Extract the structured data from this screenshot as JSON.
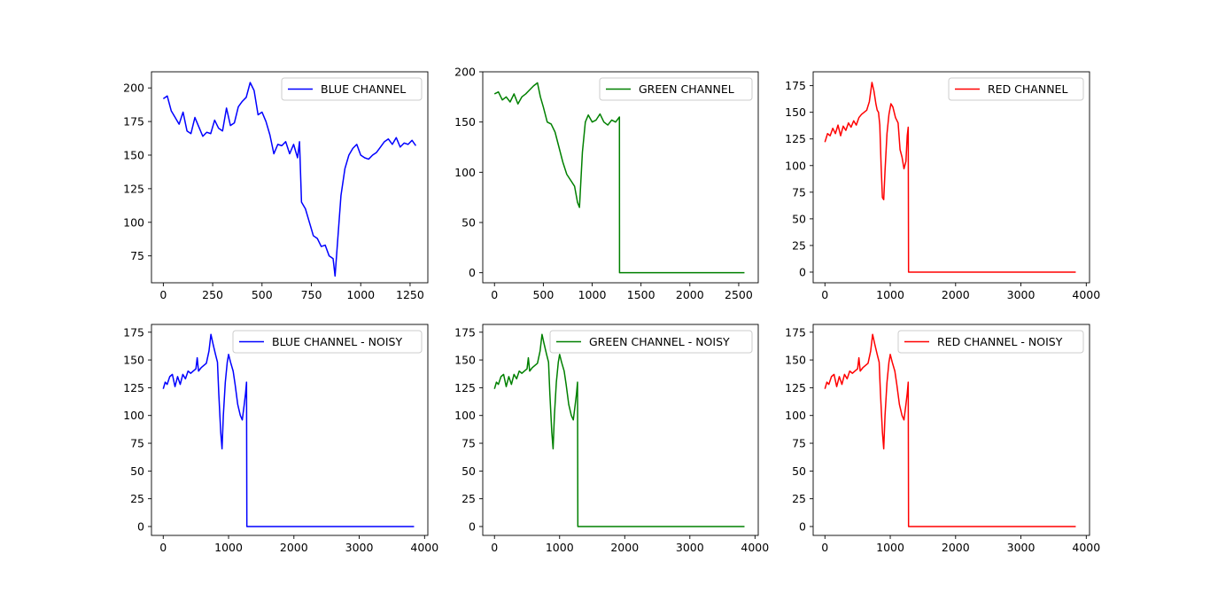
{
  "chart_data": [
    {
      "type": "line",
      "legend": "BLUE CHANNEL",
      "legend_position": "upper right",
      "color": "#0000ff",
      "xlim": [
        -60,
        1340
      ],
      "ylim": [
        55,
        212
      ],
      "xticks": [
        0,
        250,
        500,
        750,
        1000,
        1250
      ],
      "yticks": [
        75,
        100,
        125,
        150,
        175,
        200
      ],
      "points": [
        [
          0,
          192
        ],
        [
          20,
          194
        ],
        [
          40,
          183
        ],
        [
          60,
          178
        ],
        [
          80,
          173
        ],
        [
          100,
          182
        ],
        [
          120,
          168
        ],
        [
          140,
          166
        ],
        [
          160,
          178
        ],
        [
          180,
          171
        ],
        [
          200,
          164
        ],
        [
          220,
          167
        ],
        [
          240,
          166
        ],
        [
          260,
          176
        ],
        [
          280,
          170
        ],
        [
          300,
          168
        ],
        [
          320,
          185
        ],
        [
          340,
          172
        ],
        [
          360,
          174
        ],
        [
          380,
          186
        ],
        [
          400,
          190
        ],
        [
          420,
          193
        ],
        [
          440,
          204
        ],
        [
          460,
          198
        ],
        [
          480,
          180
        ],
        [
          500,
          182
        ],
        [
          520,
          175
        ],
        [
          540,
          165
        ],
        [
          560,
          151
        ],
        [
          580,
          158
        ],
        [
          600,
          157
        ],
        [
          620,
          160
        ],
        [
          640,
          151
        ],
        [
          660,
          158
        ],
        [
          680,
          148
        ],
        [
          690,
          160
        ],
        [
          700,
          115
        ],
        [
          720,
          110
        ],
        [
          740,
          100
        ],
        [
          760,
          90
        ],
        [
          780,
          88
        ],
        [
          800,
          82
        ],
        [
          820,
          83
        ],
        [
          840,
          75
        ],
        [
          860,
          73
        ],
        [
          870,
          60
        ],
        [
          880,
          80
        ],
        [
          900,
          120
        ],
        [
          920,
          140
        ],
        [
          940,
          150
        ],
        [
          960,
          155
        ],
        [
          980,
          158
        ],
        [
          1000,
          150
        ],
        [
          1020,
          148
        ],
        [
          1040,
          147
        ],
        [
          1060,
          150
        ],
        [
          1080,
          152
        ],
        [
          1100,
          156
        ],
        [
          1120,
          160
        ],
        [
          1140,
          162
        ],
        [
          1160,
          158
        ],
        [
          1180,
          163
        ],
        [
          1200,
          156
        ],
        [
          1220,
          159
        ],
        [
          1240,
          158
        ],
        [
          1260,
          161
        ],
        [
          1279,
          157
        ]
      ]
    },
    {
      "type": "line",
      "legend": "GREEN CHANNEL",
      "legend_position": "upper right",
      "color": "#008000",
      "xlim": [
        -120,
        2700
      ],
      "ylim": [
        -10,
        200
      ],
      "xticks": [
        0,
        500,
        1000,
        1500,
        2000,
        2500
      ],
      "yticks": [
        0,
        50,
        100,
        150,
        200
      ],
      "points": [
        [
          0,
          178
        ],
        [
          40,
          180
        ],
        [
          80,
          172
        ],
        [
          120,
          175
        ],
        [
          160,
          170
        ],
        [
          200,
          178
        ],
        [
          240,
          168
        ],
        [
          280,
          175
        ],
        [
          320,
          178
        ],
        [
          360,
          182
        ],
        [
          400,
          186
        ],
        [
          440,
          189
        ],
        [
          470,
          175
        ],
        [
          500,
          165
        ],
        [
          540,
          150
        ],
        [
          580,
          148
        ],
        [
          620,
          140
        ],
        [
          660,
          125
        ],
        [
          700,
          110
        ],
        [
          740,
          98
        ],
        [
          780,
          92
        ],
        [
          820,
          86
        ],
        [
          850,
          70
        ],
        [
          870,
          65
        ],
        [
          900,
          120
        ],
        [
          930,
          150
        ],
        [
          960,
          157
        ],
        [
          1000,
          150
        ],
        [
          1040,
          152
        ],
        [
          1080,
          158
        ],
        [
          1120,
          150
        ],
        [
          1160,
          147
        ],
        [
          1200,
          152
        ],
        [
          1240,
          150
        ],
        [
          1279,
          155
        ],
        [
          1280,
          0
        ],
        [
          2559,
          0
        ]
      ]
    },
    {
      "type": "line",
      "legend": "RED CHANNEL",
      "legend_position": "upper right",
      "color": "#ff0000",
      "xlim": [
        -180,
        4050
      ],
      "ylim": [
        -10,
        188
      ],
      "xticks": [
        0,
        1000,
        2000,
        3000,
        4000
      ],
      "yticks": [
        0,
        25,
        50,
        75,
        100,
        125,
        150,
        175
      ],
      "points": [
        [
          0,
          122
        ],
        [
          40,
          130
        ],
        [
          80,
          128
        ],
        [
          120,
          135
        ],
        [
          160,
          130
        ],
        [
          200,
          138
        ],
        [
          240,
          128
        ],
        [
          280,
          137
        ],
        [
          320,
          133
        ],
        [
          360,
          140
        ],
        [
          400,
          136
        ],
        [
          440,
          142
        ],
        [
          480,
          138
        ],
        [
          520,
          145
        ],
        [
          560,
          148
        ],
        [
          600,
          150
        ],
        [
          640,
          152
        ],
        [
          680,
          160
        ],
        [
          720,
          178
        ],
        [
          750,
          170
        ],
        [
          780,
          158
        ],
        [
          800,
          152
        ],
        [
          820,
          150
        ],
        [
          840,
          138
        ],
        [
          860,
          100
        ],
        [
          880,
          70
        ],
        [
          900,
          68
        ],
        [
          920,
          95
        ],
        [
          950,
          130
        ],
        [
          980,
          148
        ],
        [
          1010,
          158
        ],
        [
          1040,
          155
        ],
        [
          1080,
          145
        ],
        [
          1120,
          140
        ],
        [
          1150,
          115
        ],
        [
          1180,
          108
        ],
        [
          1210,
          97
        ],
        [
          1240,
          104
        ],
        [
          1260,
          128
        ],
        [
          1275,
          136
        ],
        [
          1280,
          0
        ],
        [
          3839,
          0
        ]
      ]
    },
    {
      "type": "line",
      "legend": "BLUE CHANNEL - NOISY",
      "legend_position": "upper right",
      "color": "#0000ff",
      "xlim": [
        -180,
        4050
      ],
      "ylim": [
        -8,
        182
      ],
      "xticks": [
        0,
        1000,
        2000,
        3000,
        4000
      ],
      "yticks": [
        0,
        25,
        50,
        75,
        100,
        125,
        150,
        175
      ],
      "points": [
        [
          0,
          124
        ],
        [
          30,
          130
        ],
        [
          60,
          128
        ],
        [
          100,
          135
        ],
        [
          140,
          137
        ],
        [
          180,
          126
        ],
        [
          220,
          135
        ],
        [
          260,
          128
        ],
        [
          300,
          137
        ],
        [
          340,
          133
        ],
        [
          380,
          140
        ],
        [
          420,
          138
        ],
        [
          460,
          140
        ],
        [
          500,
          142
        ],
        [
          520,
          152
        ],
        [
          540,
          140
        ],
        [
          580,
          143
        ],
        [
          620,
          145
        ],
        [
          660,
          147
        ],
        [
          700,
          158
        ],
        [
          730,
          173
        ],
        [
          760,
          165
        ],
        [
          800,
          155
        ],
        [
          830,
          148
        ],
        [
          850,
          120
        ],
        [
          880,
          85
        ],
        [
          900,
          70
        ],
        [
          920,
          100
        ],
        [
          950,
          130
        ],
        [
          980,
          148
        ],
        [
          1000,
          155
        ],
        [
          1030,
          148
        ],
        [
          1070,
          140
        ],
        [
          1100,
          128
        ],
        [
          1140,
          110
        ],
        [
          1180,
          100
        ],
        [
          1210,
          96
        ],
        [
          1240,
          110
        ],
        [
          1260,
          120
        ],
        [
          1275,
          130
        ],
        [
          1280,
          0
        ],
        [
          3839,
          0
        ]
      ]
    },
    {
      "type": "line",
      "legend": "GREEN CHANNEL - NOISY",
      "legend_position": "upper right",
      "color": "#008000",
      "xlim": [
        -180,
        4050
      ],
      "ylim": [
        -8,
        182
      ],
      "xticks": [
        0,
        1000,
        2000,
        3000,
        4000
      ],
      "yticks": [
        0,
        25,
        50,
        75,
        100,
        125,
        150,
        175
      ],
      "points": [
        [
          0,
          124
        ],
        [
          30,
          130
        ],
        [
          60,
          128
        ],
        [
          100,
          135
        ],
        [
          140,
          137
        ],
        [
          180,
          126
        ],
        [
          220,
          135
        ],
        [
          260,
          128
        ],
        [
          300,
          137
        ],
        [
          340,
          133
        ],
        [
          380,
          140
        ],
        [
          420,
          138
        ],
        [
          460,
          140
        ],
        [
          500,
          142
        ],
        [
          520,
          152
        ],
        [
          540,
          140
        ],
        [
          580,
          143
        ],
        [
          620,
          145
        ],
        [
          660,
          147
        ],
        [
          700,
          158
        ],
        [
          730,
          173
        ],
        [
          760,
          165
        ],
        [
          800,
          155
        ],
        [
          830,
          148
        ],
        [
          850,
          120
        ],
        [
          880,
          85
        ],
        [
          900,
          70
        ],
        [
          920,
          100
        ],
        [
          950,
          130
        ],
        [
          980,
          148
        ],
        [
          1000,
          155
        ],
        [
          1030,
          148
        ],
        [
          1070,
          140
        ],
        [
          1100,
          128
        ],
        [
          1140,
          110
        ],
        [
          1180,
          100
        ],
        [
          1210,
          96
        ],
        [
          1240,
          110
        ],
        [
          1260,
          120
        ],
        [
          1275,
          130
        ],
        [
          1280,
          0
        ],
        [
          3839,
          0
        ]
      ]
    },
    {
      "type": "line",
      "legend": "RED CHANNEL - NOISY",
      "legend_position": "upper right",
      "color": "#ff0000",
      "xlim": [
        -180,
        4050
      ],
      "ylim": [
        -8,
        182
      ],
      "xticks": [
        0,
        1000,
        2000,
        3000,
        4000
      ],
      "yticks": [
        0,
        25,
        50,
        75,
        100,
        125,
        150,
        175
      ],
      "points": [
        [
          0,
          124
        ],
        [
          30,
          130
        ],
        [
          60,
          128
        ],
        [
          100,
          135
        ],
        [
          140,
          137
        ],
        [
          180,
          126
        ],
        [
          220,
          135
        ],
        [
          260,
          128
        ],
        [
          300,
          137
        ],
        [
          340,
          133
        ],
        [
          380,
          140
        ],
        [
          420,
          138
        ],
        [
          460,
          140
        ],
        [
          500,
          142
        ],
        [
          520,
          152
        ],
        [
          540,
          140
        ],
        [
          580,
          143
        ],
        [
          620,
          145
        ],
        [
          660,
          147
        ],
        [
          700,
          158
        ],
        [
          730,
          173
        ],
        [
          760,
          165
        ],
        [
          800,
          155
        ],
        [
          830,
          148
        ],
        [
          850,
          120
        ],
        [
          880,
          85
        ],
        [
          900,
          70
        ],
        [
          920,
          100
        ],
        [
          950,
          130
        ],
        [
          980,
          148
        ],
        [
          1000,
          155
        ],
        [
          1030,
          148
        ],
        [
          1070,
          140
        ],
        [
          1100,
          128
        ],
        [
          1140,
          110
        ],
        [
          1180,
          100
        ],
        [
          1210,
          96
        ],
        [
          1240,
          110
        ],
        [
          1260,
          120
        ],
        [
          1275,
          130
        ],
        [
          1280,
          0
        ],
        [
          3839,
          0
        ]
      ]
    }
  ]
}
